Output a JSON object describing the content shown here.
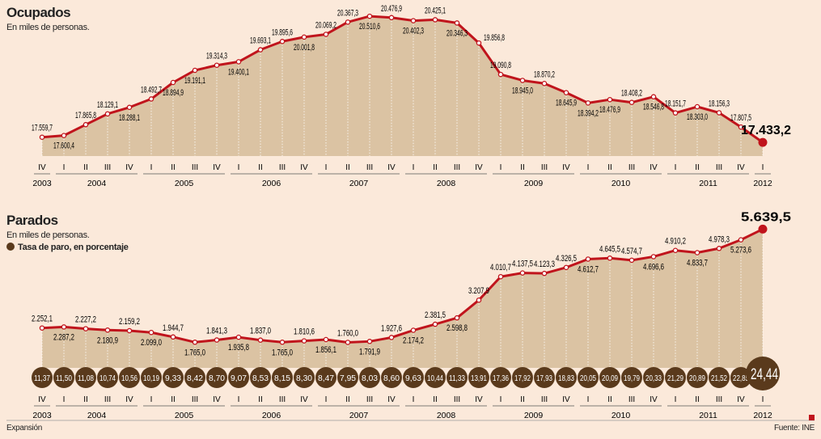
{
  "chart_data": [
    {
      "type": "line",
      "title": "Ocupados",
      "subtitle": "En miles de personas.",
      "categories": [
        "IV",
        "I",
        "II",
        "III",
        "IV",
        "I",
        "II",
        "III",
        "IV",
        "I",
        "II",
        "III",
        "IV",
        "I",
        "II",
        "III",
        "IV",
        "I",
        "II",
        "III",
        "IV",
        "I",
        "II",
        "III",
        "IV",
        "I",
        "II",
        "III",
        "IV",
        "I",
        "II",
        "III",
        "IV",
        "I"
      ],
      "years": [
        {
          "label": "2003",
          "from": 0,
          "to": 0
        },
        {
          "label": "2004",
          "from": 1,
          "to": 4
        },
        {
          "label": "2005",
          "from": 5,
          "to": 8
        },
        {
          "label": "2006",
          "from": 9,
          "to": 12
        },
        {
          "label": "2007",
          "from": 13,
          "to": 16
        },
        {
          "label": "2008",
          "from": 17,
          "to": 20
        },
        {
          "label": "2009",
          "from": 21,
          "to": 24
        },
        {
          "label": "2010",
          "from": 25,
          "to": 28
        },
        {
          "label": "2011",
          "from": 29,
          "to": 32
        },
        {
          "label": "2012",
          "from": 33,
          "to": 33
        }
      ],
      "values": [
        17559.7,
        17600.4,
        17865.8,
        18129.1,
        18288.1,
        18492.7,
        18894.9,
        19191.1,
        19314.3,
        19400.1,
        19693.1,
        19895.6,
        20001.8,
        20069.2,
        20367.3,
        20510.6,
        20476.9,
        20402.3,
        20425.1,
        20346.3,
        19856.8,
        19090.8,
        18945.0,
        18870.2,
        18645.9,
        18394.2,
        18476.9,
        18408.2,
        18546.8,
        18151.7,
        18303.0,
        18156.3,
        17807.5,
        17433.2
      ],
      "labels": [
        "17.559,7",
        "17.600,4",
        "17.865,8",
        "18.129,1",
        "18.288,1",
        "18.492,7",
        "18.894,9",
        "19.191,1",
        "19.314,3",
        "19.400,1",
        "19.693,1",
        "19.895,6",
        "20.001,8",
        "20.069,2",
        "20.367,3",
        "20.510,6",
        "20.476,9",
        "20.402,3",
        "20.425,1",
        "20.346,3",
        "19.856,8",
        "19.090,8",
        "18.945,0",
        "18.870,2",
        "18.645,9",
        "18.394,2",
        "18.476,9",
        "18.408,2",
        "18.546,8",
        "18.151,7",
        "18.303,0",
        "18.156,3",
        "17.807,5",
        "17.433,2"
      ]
    },
    {
      "type": "line",
      "title": "Parados",
      "subtitle": "En miles de personas.",
      "legend": "Tasa de paro, en porcentaje",
      "values": [
        2252.1,
        2287.2,
        2227.2,
        2180.9,
        2159.2,
        2099.0,
        1944.7,
        1765.0,
        1841.3,
        1935.8,
        1837.0,
        1765.0,
        1810.6,
        1856.1,
        1760.0,
        1791.9,
        1927.6,
        2174.2,
        2381.5,
        2598.8,
        3207.9,
        4010.7,
        4137.5,
        4123.3,
        4326.5,
        4612.7,
        4645.5,
        4574.7,
        4696.6,
        4910.2,
        4833.7,
        4978.3,
        5273.6,
        5639.5
      ],
      "labels": [
        "2.252,1",
        "2.287,2",
        "2.227,2",
        "2.180,9",
        "2.159,2",
        "2.099,0",
        "1.944,7",
        "1.765,0",
        "1.841,3",
        "1.935,8",
        "1.837,0",
        "1.765,0",
        "1.810,6",
        "1.856,1",
        "1.760,0",
        "1.791,9",
        "1.927,6",
        "2.174,2",
        "2.381,5",
        "2.598,8",
        "3.207,9",
        "4.010,7",
        "4.137,5",
        "4.123,3",
        "4.326,5",
        "4.612,7",
        "4.645,5",
        "4.574,7",
        "4.696,6",
        "4.910,2",
        "4.833,7",
        "4.978,3",
        "5.273,6",
        "5.639,5"
      ],
      "rate": [
        11.37,
        11.5,
        11.08,
        10.74,
        10.56,
        10.19,
        9.33,
        8.42,
        8.7,
        9.07,
        8.53,
        8.15,
        8.3,
        8.47,
        7.95,
        8.03,
        8.6,
        9.63,
        10.44,
        11.33,
        13.91,
        17.36,
        17.92,
        17.93,
        18.83,
        20.05,
        20.09,
        19.79,
        20.33,
        21.29,
        20.89,
        21.52,
        22.85,
        24.44
      ],
      "rate_labels": [
        "11,37",
        "11,50",
        "11,08",
        "10,74",
        "10,56",
        "10,19",
        "9,33",
        "8,42",
        "8,70",
        "9,07",
        "8,53",
        "8,15",
        "8,30",
        "8,47",
        "7,95",
        "8,03",
        "8,60",
        "9,63",
        "10,44",
        "11,33",
        "13,91",
        "17,36",
        "17,92",
        "17,93",
        "18,83",
        "20,05",
        "20,09",
        "19,79",
        "20,33",
        "21,29",
        "20,89",
        "21,52",
        "22,85",
        "24,44"
      ]
    }
  ],
  "footer": {
    "source_left": "Expansión",
    "source_right": "Fuente: INE"
  },
  "colors": {
    "line": "#c0141c",
    "fill": "#dbc3a3",
    "circle": "#5a3a1c",
    "bg": "#fbe9da"
  }
}
